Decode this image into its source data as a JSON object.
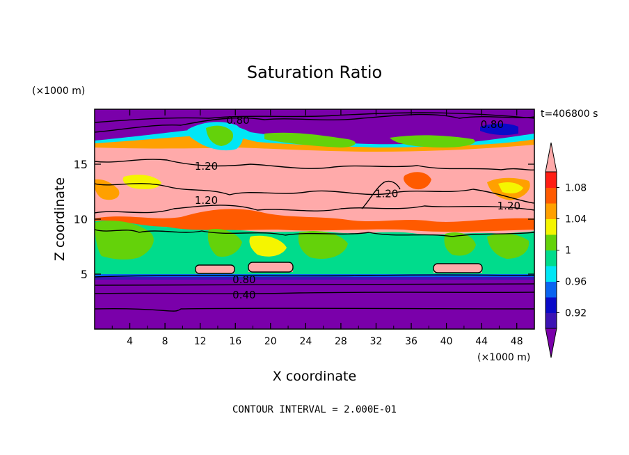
{
  "chart_data": {
    "type": "heatmap",
    "title": "Saturation Ratio",
    "xlabel": "X coordinate",
    "ylabel": "Z coordinate",
    "x_unit": "(×1000 m)",
    "y_unit": "(×1000 m)",
    "time_label": "t=406800 s",
    "footer": "CONTOUR INTERVAL = 2.000E-01",
    "xlim": [
      0,
      50
    ],
    "ylim": [
      0,
      20
    ],
    "x_ticks": [
      4,
      8,
      12,
      16,
      20,
      24,
      28,
      32,
      36,
      40,
      44,
      48
    ],
    "x_tick_labels": [
      "4",
      "8",
      "12",
      "16",
      "20",
      "24",
      "28",
      "32",
      "36",
      "40",
      "44",
      "48"
    ],
    "y_ticks": [
      5,
      10,
      15
    ],
    "y_tick_labels": [
      "5",
      "10",
      "15"
    ],
    "colorbar": {
      "levels": [
        0.9,
        0.92,
        0.94,
        0.96,
        0.98,
        1.0,
        1.02,
        1.04,
        1.06,
        1.08,
        1.1
      ],
      "labels": [
        "0.92",
        "0.96",
        "1",
        "1.04",
        "1.08"
      ],
      "label_values": [
        0.92,
        0.96,
        1.0,
        1.04,
        1.08
      ],
      "colors": [
        "#7a00aa",
        "#3c14b4",
        "#0a0ac8",
        "#0a64f0",
        "#00e6f5",
        "#00dc8c",
        "#64d20a",
        "#f5f500",
        "#ffa000",
        "#ff5a00",
        "#ff1e14",
        "#ffaaaa"
      ]
    },
    "contour_labels": [
      {
        "text": "0.80",
        "x": 16.3,
        "y": 19.0
      },
      {
        "text": "0.80",
        "x": 45.2,
        "y": 18.6
      },
      {
        "text": "1.20",
        "x": 12.7,
        "y": 14.8
      },
      {
        "text": "1.20",
        "x": 12.7,
        "y": 11.7
      },
      {
        "text": "1.20",
        "x": 33.2,
        "y": 12.3
      },
      {
        "text": "1.20",
        "x": 47.1,
        "y": 11.2
      },
      {
        "text": "0.80",
        "x": 17.0,
        "y": 4.5
      },
      {
        "text": "0.40",
        "x": 17.0,
        "y": 3.1
      }
    ]
  }
}
